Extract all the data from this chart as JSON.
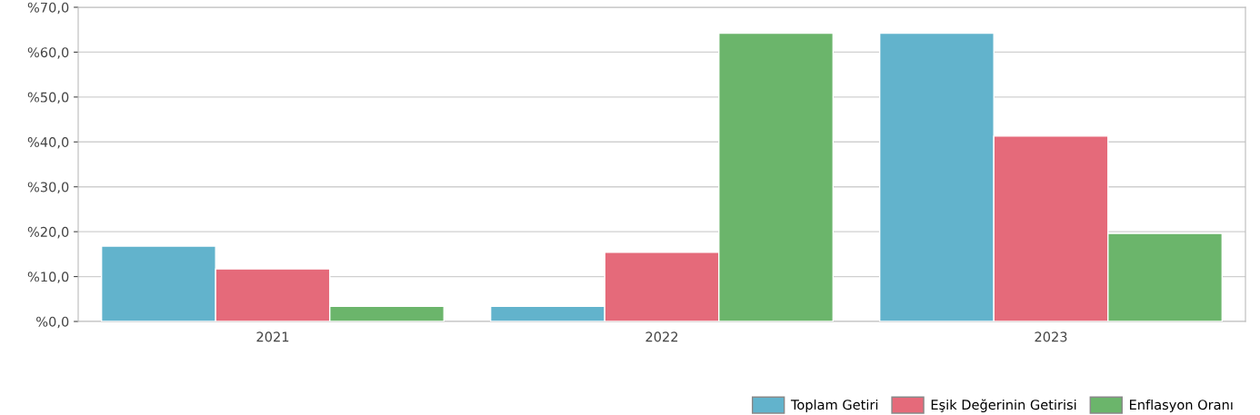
{
  "chart_data": {
    "type": "bar",
    "categories": [
      "2021",
      "2022",
      "2023"
    ],
    "series": [
      {
        "name": "Toplam Getiri",
        "color": "#62b3cc",
        "values": [
          16.8,
          3.4,
          64.2
        ]
      },
      {
        "name": "Eşik Değerinin Getirisi",
        "color": "#e56a7a",
        "values": [
          11.7,
          15.4,
          41.3
        ]
      },
      {
        "name": "Enflasyon Oranı",
        "color": "#6bb56b",
        "values": [
          3.4,
          64.2,
          19.6
        ]
      }
    ],
    "ylim": [
      0,
      70
    ],
    "yticks": [
      {
        "value": 0,
        "label": "%0,0"
      },
      {
        "value": 10,
        "label": "%10,0"
      },
      {
        "value": 20,
        "label": "%20,0"
      },
      {
        "value": 30,
        "label": "%30,0"
      },
      {
        "value": 40,
        "label": "%40,0"
      },
      {
        "value": 50,
        "label": "%50,0"
      },
      {
        "value": 60,
        "label": "%60,0"
      },
      {
        "value": 70,
        "label": "%70,0"
      }
    ],
    "grid": "y",
    "legend": "bottom right"
  }
}
